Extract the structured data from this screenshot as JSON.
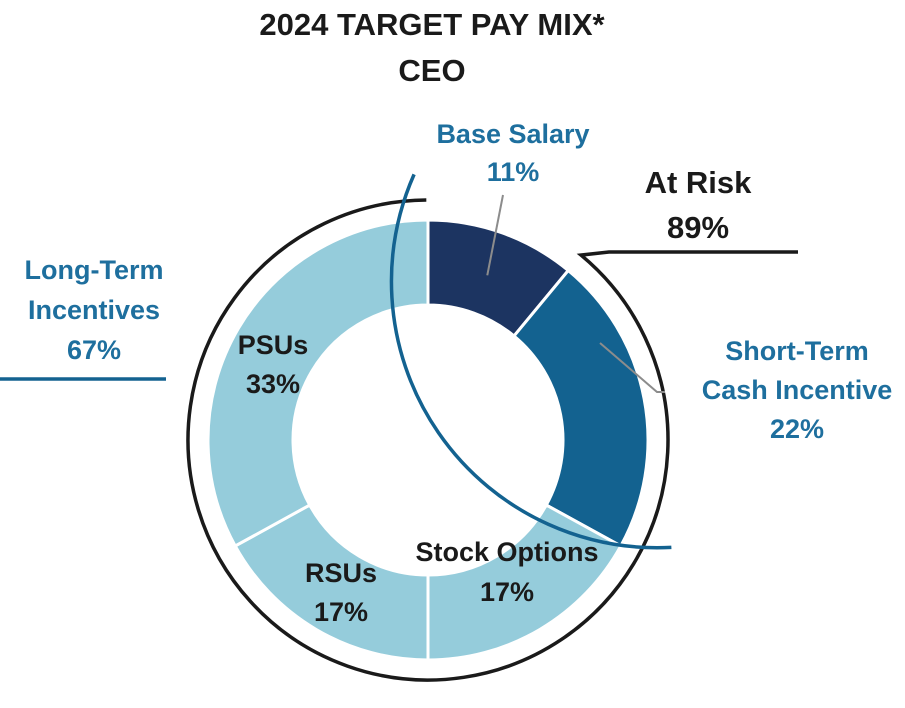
{
  "chart_data": {
    "type": "pie",
    "title": "2024 TARGET PAY MIX*",
    "subtitle": "CEO",
    "categories": [
      "Base Salary",
      "Short-Term Cash Incentive",
      "Stock Options",
      "RSUs",
      "PSUs"
    ],
    "values": [
      11,
      22,
      17,
      17,
      33
    ],
    "unit": "%",
    "slices": [
      {
        "name": "Base Salary",
        "label_lines": [
          "Base Salary",
          "11%"
        ],
        "value": 11,
        "color": "#1c3461"
      },
      {
        "name": "Short-Term Cash Incentive",
        "label_lines": [
          "Short-Term",
          "Cash Incentive",
          "22%"
        ],
        "value": 22,
        "color": "#136290"
      },
      {
        "name": "Stock Options",
        "label_lines": [
          "Stock Options",
          "17%"
        ],
        "value": 17,
        "color": "#95ccdb"
      },
      {
        "name": "RSUs",
        "label_lines": [
          "RSUs",
          "17%"
        ],
        "value": 17,
        "color": "#95ccdb"
      },
      {
        "name": "PSUs",
        "label_lines": [
          "PSUs",
          "33%"
        ],
        "value": 33,
        "color": "#95ccdb"
      }
    ],
    "groups": [
      {
        "name": "At Risk",
        "label_lines": [
          "At Risk",
          "89%"
        ],
        "value": 89,
        "color": "#1a1a1a"
      },
      {
        "name": "Long-Term Incentives",
        "label_lines": [
          "Long-Term",
          "Incentives",
          "67%"
        ],
        "value": 67,
        "color": "#136290"
      }
    ],
    "colors": {
      "label_blue": "#1e6f9e",
      "label_dark": "#1a1a1a",
      "leader": "#8c8c8c",
      "separator": "#ffffff"
    }
  }
}
